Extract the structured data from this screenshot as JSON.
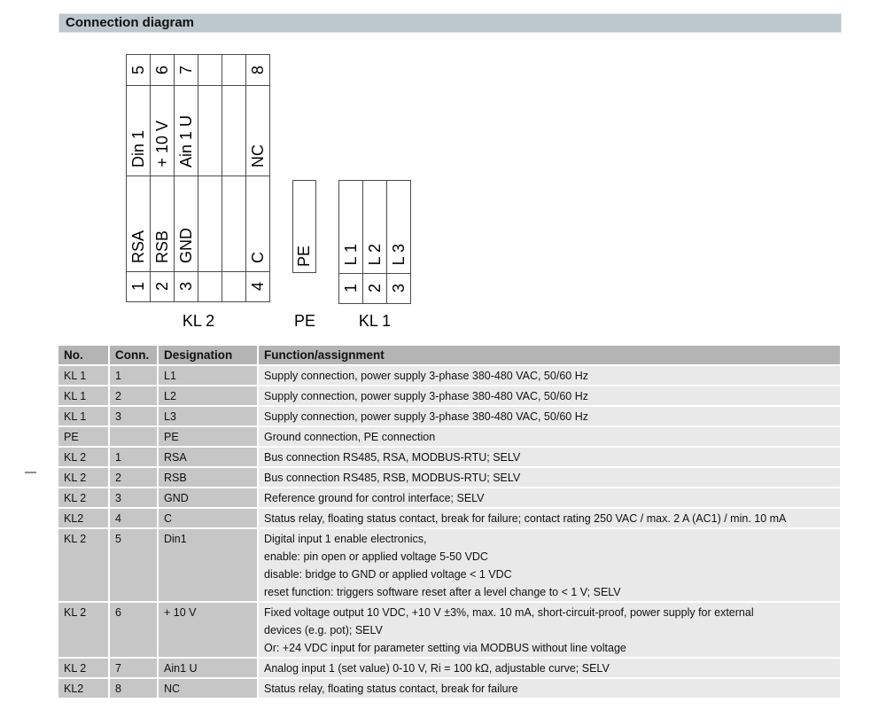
{
  "section": {
    "title": "Connection diagram"
  },
  "diagram": {
    "kl2": {
      "label": "KL 2",
      "rows": [
        {
          "type": "num",
          "cells": [
            "5",
            "6",
            "7",
            "",
            "",
            "8"
          ]
        },
        {
          "type": "lbl",
          "cells": [
            "Din 1",
            "+ 10 V",
            "Ain 1 U",
            "",
            "",
            "NC"
          ]
        },
        {
          "type": "lbl",
          "cells": [
            "RSA",
            "RSB",
            "GND",
            "",
            "",
            "C"
          ]
        },
        {
          "type": "num",
          "cells": [
            "1",
            "2",
            "3",
            "",
            "",
            "4"
          ]
        }
      ]
    },
    "pe": {
      "label": "PE",
      "cell": "PE"
    },
    "kl1": {
      "label": "KL 1",
      "rows": [
        {
          "type": "lbl",
          "cells": [
            "L 1",
            "L 2",
            "L 3"
          ]
        },
        {
          "type": "num",
          "cells": [
            "1",
            "2",
            "3"
          ]
        }
      ]
    }
  },
  "table": {
    "headers": [
      "No.",
      "Conn.",
      "Designation",
      "Function/assignment"
    ],
    "rows": [
      {
        "no": "KL 1",
        "conn": "1",
        "designation": "L1",
        "function": [
          "Supply connection, power supply 3-phase 380-480 VAC, 50/60 Hz"
        ]
      },
      {
        "no": "KL 1",
        "conn": "2",
        "designation": "L2",
        "function": [
          "Supply connection, power supply 3-phase 380-480 VAC, 50/60 Hz"
        ]
      },
      {
        "no": "KL 1",
        "conn": "3",
        "designation": "L3",
        "function": [
          "Supply connection, power supply 3-phase 380-480 VAC, 50/60 Hz"
        ]
      },
      {
        "no": "PE",
        "conn": "",
        "designation": "PE",
        "function": [
          "Ground connection, PE connection"
        ]
      },
      {
        "no": "KL 2",
        "conn": "1",
        "designation": "RSA",
        "function": [
          "Bus connection RS485, RSA, MODBUS-RTU; SELV"
        ]
      },
      {
        "no": "KL 2",
        "conn": "2",
        "designation": "RSB",
        "function": [
          "Bus connection RS485, RSB, MODBUS-RTU; SELV"
        ]
      },
      {
        "no": "KL 2",
        "conn": "3",
        "designation": "GND",
        "function": [
          "Reference ground for control interface; SELV"
        ]
      },
      {
        "no": "KL2",
        "conn": "4",
        "designation": "C",
        "function": [
          "Status relay, floating status contact, break for failure; contact rating 250 VAC / max. 2 A (AC1) / min. 10 mA"
        ]
      },
      {
        "no": "KL 2",
        "conn": "5",
        "designation": "Din1",
        "function": [
          "Digital input 1 enable electronics,",
          "enable: pin open or applied voltage 5-50 VDC",
          "disable: bridge to GND or applied voltage < 1 VDC",
          "reset function: triggers software reset after a level change to < 1 V; SELV"
        ]
      },
      {
        "no": "KL 2",
        "conn": "6",
        "designation": "+ 10 V",
        "function": [
          "Fixed voltage output 10 VDC, +10 V ±3%, max. 10 mA, short-circuit-proof, power supply for external",
          "devices (e.g. pot); SELV",
          "Or: +24 VDC input for parameter setting via MODBUS without line voltage"
        ]
      },
      {
        "no": "KL 2",
        "conn": "7",
        "designation": "Ain1 U",
        "function": [
          "Analog input 1 (set value) 0-10 V, Ri = 100 kΩ, adjustable curve; SELV"
        ]
      },
      {
        "no": "KL2",
        "conn": "8",
        "designation": "NC",
        "function": [
          "Status relay, floating status contact, break for failure"
        ]
      }
    ]
  },
  "colors": {
    "title_bg": "#bcc7ce",
    "title_border": "#dfe4e8",
    "line": "#4a4a4a",
    "header_bg": "#b4b4b4",
    "cell_bg": "#c6c6c6",
    "function_bg": "#e9e9e9",
    "dash": "#8e8e8e"
  }
}
